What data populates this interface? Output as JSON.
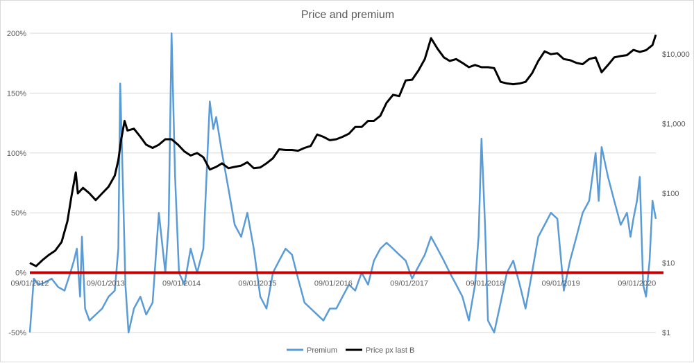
{
  "chart_data": {
    "type": "line",
    "title": "Price and premium",
    "legend_position": "bottom",
    "grid": {
      "horizontal": true,
      "vertical": false
    },
    "x_axis": {
      "type": "date",
      "range": [
        "2012-09-01",
        "2020-12-01"
      ],
      "tick_labels": [
        "09/01/2012",
        "09/01/2013",
        "09/01/2014",
        "09/01/2015",
        "09/01/2016",
        "09/01/2017",
        "09/01/2018",
        "09/01/2019",
        "09/01/2020"
      ]
    },
    "y_left": {
      "type": "linear",
      "unit": "percent",
      "range": [
        -50,
        200
      ],
      "tick_labels": [
        "200%",
        "150%",
        "100%",
        "50%",
        "0%",
        "-50%"
      ],
      "tick_values": [
        200,
        150,
        100,
        50,
        0,
        -50
      ]
    },
    "y_right": {
      "type": "log",
      "range": [
        1,
        20000
      ],
      "tick_labels": [
        "$10,000",
        "$1,000",
        "$100",
        "$10",
        "$1"
      ],
      "tick_values": [
        10000,
        1000,
        100,
        10,
        1
      ]
    },
    "reference_line": {
      "axis": "left",
      "value": 0,
      "color": "#c00000"
    },
    "series": [
      {
        "name": "Premium",
        "axis": "left",
        "color": "#5b9bd5",
        "x": [
          "2012-09-01",
          "2012-09-20",
          "2012-10-15",
          "2012-11-15",
          "2012-12-15",
          "2013-01-15",
          "2013-02-15",
          "2013-03-15",
          "2013-04-01",
          "2013-04-15",
          "2013-05-01",
          "2013-05-10",
          "2013-05-25",
          "2013-06-15",
          "2013-07-15",
          "2013-08-15",
          "2013-09-15",
          "2013-10-15",
          "2013-11-01",
          "2013-11-10",
          "2013-11-25",
          "2013-12-05",
          "2013-12-20",
          "2014-01-15",
          "2014-02-15",
          "2014-03-15",
          "2014-04-15",
          "2014-05-15",
          "2014-06-15",
          "2014-07-01",
          "2014-07-15",
          "2014-08-01",
          "2014-08-20",
          "2014-09-15",
          "2014-10-15",
          "2014-11-15",
          "2014-12-15",
          "2015-01-15",
          "2015-02-01",
          "2015-02-15",
          "2015-03-15",
          "2015-04-15",
          "2015-05-15",
          "2015-06-15",
          "2015-07-15",
          "2015-08-15",
          "2015-09-15",
          "2015-10-15",
          "2015-11-15",
          "2015-12-15",
          "2016-01-15",
          "2016-02-15",
          "2016-03-15",
          "2016-04-15",
          "2016-05-15",
          "2016-06-15",
          "2016-07-15",
          "2016-08-15",
          "2016-09-15",
          "2016-10-15",
          "2016-11-15",
          "2016-12-15",
          "2017-01-15",
          "2017-02-15",
          "2017-03-15",
          "2017-04-15",
          "2017-05-15",
          "2017-06-15",
          "2017-07-15",
          "2017-08-15",
          "2017-09-15",
          "2017-10-15",
          "2017-11-15",
          "2017-12-15",
          "2018-01-15",
          "2018-02-15",
          "2018-03-15",
          "2018-04-15",
          "2018-05-15",
          "2018-06-15",
          "2018-07-15",
          "2018-08-01",
          "2018-08-15",
          "2018-09-01",
          "2018-09-15",
          "2018-10-15",
          "2018-11-15",
          "2018-12-15",
          "2019-01-15",
          "2019-02-15",
          "2019-03-15",
          "2019-04-15",
          "2019-05-15",
          "2019-06-15",
          "2019-07-15",
          "2019-08-15",
          "2019-09-15",
          "2019-10-15",
          "2019-11-15",
          "2019-12-15",
          "2020-01-15",
          "2020-02-15",
          "2020-03-01",
          "2020-03-15",
          "2020-04-15",
          "2020-05-15",
          "2020-06-15",
          "2020-07-15",
          "2020-08-01",
          "2020-08-15",
          "2020-09-01",
          "2020-09-15",
          "2020-10-01",
          "2020-10-15",
          "2020-11-01",
          "2020-11-15",
          "2020-12-01"
        ],
        "values": [
          -50,
          -5,
          -10,
          -8,
          -5,
          -12,
          -15,
          0,
          10,
          20,
          -20,
          30,
          -30,
          -40,
          -35,
          -30,
          -20,
          -15,
          20,
          158,
          60,
          -10,
          -50,
          -30,
          -20,
          -35,
          -25,
          50,
          0,
          40,
          200,
          80,
          0,
          -10,
          20,
          0,
          20,
          143,
          120,
          130,
          100,
          70,
          40,
          30,
          50,
          20,
          -20,
          -30,
          0,
          10,
          20,
          15,
          -5,
          -25,
          -30,
          -35,
          -40,
          -30,
          -30,
          -20,
          -10,
          -15,
          0,
          -10,
          10,
          20,
          25,
          20,
          15,
          10,
          -5,
          5,
          15,
          30,
          20,
          10,
          0,
          -10,
          -20,
          -40,
          -10,
          30,
          112,
          40,
          -40,
          -50,
          -25,
          0,
          10,
          -10,
          -30,
          0,
          30,
          40,
          50,
          45,
          -15,
          10,
          30,
          50,
          60,
          100,
          60,
          105,
          80,
          60,
          40,
          50,
          30,
          45,
          60,
          80,
          -10,
          -20,
          10,
          60,
          45
        ]
      },
      {
        "name": "Price  px last B",
        "axis": "right",
        "color": "#000000",
        "x": [
          "2012-09-01",
          "2012-10-01",
          "2012-11-01",
          "2012-12-01",
          "2013-01-01",
          "2013-02-01",
          "2013-03-01",
          "2013-03-20",
          "2013-04-10",
          "2013-04-20",
          "2013-05-15",
          "2013-06-15",
          "2013-07-15",
          "2013-08-15",
          "2013-09-15",
          "2013-10-15",
          "2013-11-01",
          "2013-11-15",
          "2013-12-01",
          "2013-12-15",
          "2014-01-15",
          "2014-02-15",
          "2014-03-15",
          "2014-04-15",
          "2014-05-15",
          "2014-06-15",
          "2014-07-15",
          "2014-08-15",
          "2014-09-15",
          "2014-10-15",
          "2014-11-15",
          "2014-12-15",
          "2015-01-15",
          "2015-02-15",
          "2015-03-15",
          "2015-04-15",
          "2015-05-15",
          "2015-06-15",
          "2015-07-15",
          "2015-08-15",
          "2015-09-15",
          "2015-10-15",
          "2015-11-15",
          "2015-12-15",
          "2016-01-15",
          "2016-02-15",
          "2016-03-15",
          "2016-04-15",
          "2016-05-15",
          "2016-06-15",
          "2016-07-15",
          "2016-08-15",
          "2016-09-15",
          "2016-10-15",
          "2016-11-15",
          "2016-12-15",
          "2017-01-15",
          "2017-02-15",
          "2017-03-15",
          "2017-04-15",
          "2017-05-15",
          "2017-06-15",
          "2017-07-15",
          "2017-08-15",
          "2017-09-15",
          "2017-10-15",
          "2017-11-15",
          "2017-12-15",
          "2018-01-15",
          "2018-02-15",
          "2018-03-15",
          "2018-04-15",
          "2018-05-15",
          "2018-06-15",
          "2018-07-15",
          "2018-08-15",
          "2018-09-15",
          "2018-10-15",
          "2018-11-15",
          "2018-12-15",
          "2019-01-15",
          "2019-02-15",
          "2019-03-15",
          "2019-04-15",
          "2019-05-15",
          "2019-06-15",
          "2019-07-15",
          "2019-08-15",
          "2019-09-15",
          "2019-10-15",
          "2019-11-15",
          "2019-12-15",
          "2020-01-15",
          "2020-02-15",
          "2020-03-15",
          "2020-04-15",
          "2020-05-15",
          "2020-06-15",
          "2020-07-15",
          "2020-08-15",
          "2020-09-15",
          "2020-10-15",
          "2020-11-15",
          "2020-12-01"
        ],
        "values": [
          10,
          9,
          11,
          13,
          15,
          20,
          40,
          90,
          200,
          100,
          120,
          100,
          80,
          100,
          125,
          180,
          300,
          600,
          1100,
          800,
          850,
          650,
          500,
          450,
          500,
          600,
          600,
          500,
          400,
          350,
          380,
          330,
          220,
          240,
          270,
          230,
          240,
          250,
          280,
          230,
          235,
          270,
          320,
          430,
          420,
          420,
          410,
          450,
          480,
          700,
          650,
          580,
          600,
          650,
          720,
          900,
          900,
          1100,
          1100,
          1300,
          2000,
          2600,
          2500,
          4200,
          4300,
          5800,
          8500,
          17000,
          12000,
          9000,
          8000,
          8500,
          7500,
          6500,
          7000,
          6500,
          6500,
          6300,
          4000,
          3800,
          3700,
          3800,
          4000,
          5300,
          8000,
          11000,
          10000,
          10300,
          8500,
          8200,
          7500,
          7200,
          8500,
          9000,
          5500,
          7000,
          9000,
          9400,
          9700,
          11500,
          10800,
          11400,
          13500,
          19000
        ]
      }
    ]
  }
}
